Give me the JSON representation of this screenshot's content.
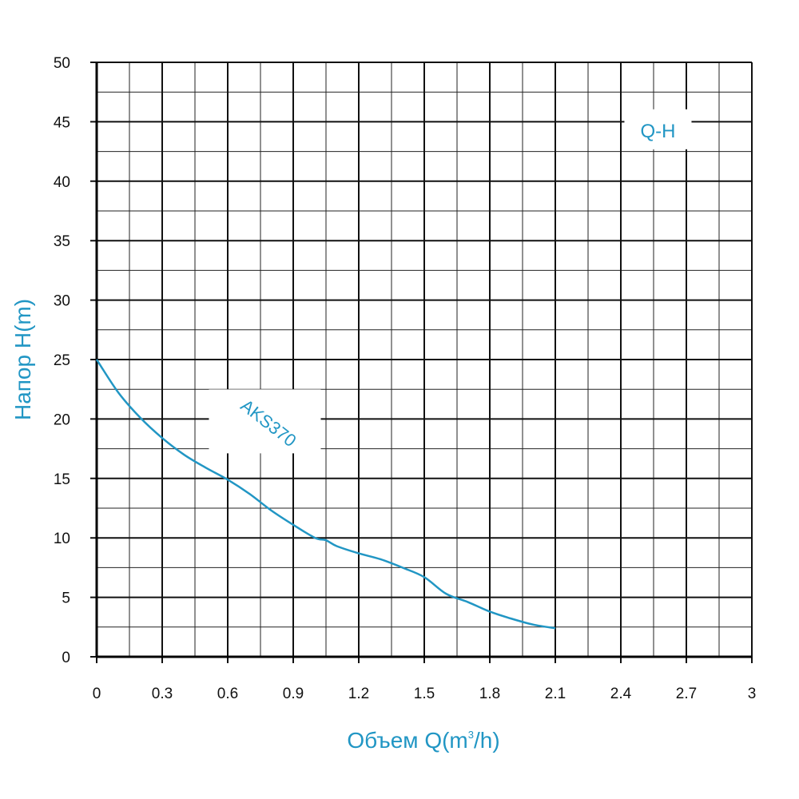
{
  "chart_data": {
    "type": "line",
    "title": "",
    "xlabel_main": "Объем Q(m",
    "xlabel_sup": "3",
    "xlabel_tail": "/h)",
    "ylabel": "Напор H(m)",
    "xlim": [
      0,
      3
    ],
    "ylim": [
      0,
      50
    ],
    "x_ticks": [
      "0",
      "0.3",
      "0.6",
      "0.9",
      "1.2",
      "1.5",
      "1.8",
      "2.1",
      "2.4",
      "2.7",
      "3"
    ],
    "y_ticks": [
      "0",
      "5",
      "10",
      "15",
      "20",
      "25",
      "30",
      "35",
      "40",
      "45",
      "50"
    ],
    "grid": true,
    "annotation": "Q-H",
    "series": [
      {
        "name": "AKS370",
        "x": [
          0,
          0.1,
          0.2,
          0.3,
          0.4,
          0.5,
          0.6,
          0.7,
          0.8,
          0.9,
          1.0,
          1.05,
          1.1,
          1.2,
          1.3,
          1.4,
          1.5,
          1.6,
          1.7,
          1.8,
          1.9,
          2.0,
          2.1
        ],
        "y": [
          25,
          22.2,
          20.1,
          18.4,
          17.0,
          15.9,
          14.9,
          13.7,
          12.3,
          11.1,
          10.0,
          9.8,
          9.3,
          8.7,
          8.2,
          7.5,
          6.7,
          5.3,
          4.6,
          3.8,
          3.2,
          2.7,
          2.4
        ],
        "color": "#2196c4"
      }
    ],
    "colors": {
      "accent": "#2196c4",
      "grid_major": "#111111",
      "grid_minor": "#222222"
    }
  }
}
